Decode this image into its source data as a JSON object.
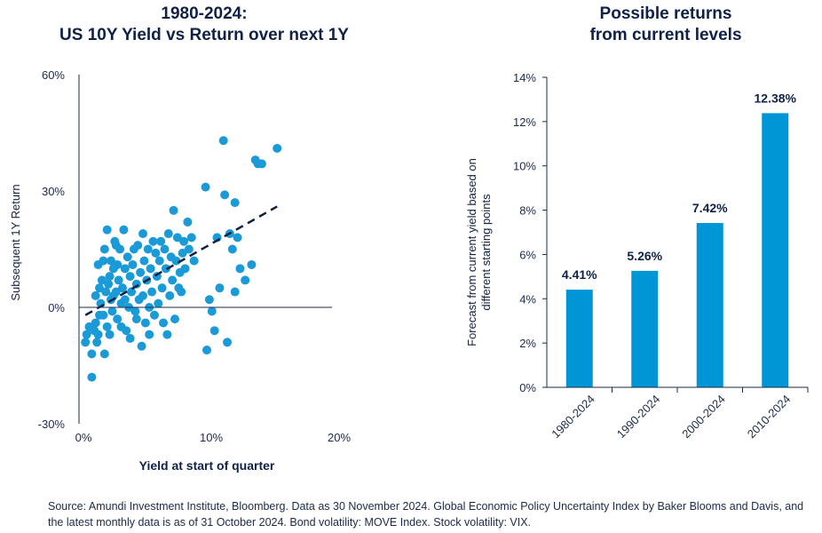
{
  "chart_data": [
    {
      "type": "scatter",
      "title_line1": "1980-2024:",
      "title_line2": "US 10Y Yield vs Return over next 1Y",
      "xlabel": "Yield at start of quarter",
      "ylabel": "Subsequent 1Y Return",
      "xlim": [
        0,
        20
      ],
      "ylim": [
        -30,
        60
      ],
      "xticks": [
        "0%",
        "10%",
        "20%"
      ],
      "yticks": [
        "-30%",
        "0%",
        "30%",
        "60%"
      ],
      "trendline": {
        "style": "dashed",
        "points": [
          [
            0.5,
            -2
          ],
          [
            15.5,
            26
          ]
        ]
      },
      "points": [
        [
          0.5,
          -9
        ],
        [
          0.6,
          -7
        ],
        [
          0.8,
          -5
        ],
        [
          1.0,
          -18
        ],
        [
          1.0,
          -12
        ],
        [
          1.2,
          -6
        ],
        [
          1.3,
          -4
        ],
        [
          1.4,
          -9
        ],
        [
          1.5,
          -7
        ],
        [
          1.6,
          -2
        ],
        [
          1.3,
          3
        ],
        [
          1.5,
          11
        ],
        [
          1.6,
          5
        ],
        [
          1.7,
          1
        ],
        [
          1.8,
          7
        ],
        [
          1.9,
          12
        ],
        [
          1.9,
          -2
        ],
        [
          2.0,
          -12
        ],
        [
          2.0,
          15
        ],
        [
          2.1,
          4
        ],
        [
          2.2,
          20
        ],
        [
          2.2,
          -5
        ],
        [
          2.3,
          6
        ],
        [
          2.4,
          8
        ],
        [
          2.4,
          -7
        ],
        [
          2.5,
          2
        ],
        [
          2.5,
          12
        ],
        [
          2.6,
          -1
        ],
        [
          2.7,
          3
        ],
        [
          2.7,
          10
        ],
        [
          2.8,
          17
        ],
        [
          2.9,
          16
        ],
        [
          2.9,
          4
        ],
        [
          3.0,
          -3
        ],
        [
          3.0,
          11
        ],
        [
          3.1,
          7
        ],
        [
          3.2,
          15
        ],
        [
          3.3,
          1
        ],
        [
          3.3,
          -5
        ],
        [
          3.4,
          5
        ],
        [
          3.5,
          20
        ],
        [
          3.6,
          10
        ],
        [
          3.6,
          2
        ],
        [
          3.7,
          -6
        ],
        [
          3.8,
          13
        ],
        [
          3.9,
          0
        ],
        [
          4.0,
          -8
        ],
        [
          4.0,
          8
        ],
        [
          4.1,
          4
        ],
        [
          4.2,
          11
        ],
        [
          4.3,
          15
        ],
        [
          4.4,
          -1
        ],
        [
          4.5,
          6
        ],
        [
          4.5,
          -3
        ],
        [
          4.6,
          16
        ],
        [
          4.7,
          2
        ],
        [
          4.8,
          9
        ],
        [
          4.9,
          -10
        ],
        [
          5.0,
          19
        ],
        [
          5.0,
          3
        ],
        [
          5.1,
          12
        ],
        [
          5.2,
          -4
        ],
        [
          5.3,
          7
        ],
        [
          5.4,
          15
        ],
        [
          5.5,
          0
        ],
        [
          5.5,
          -7
        ],
        [
          5.6,
          10
        ],
        [
          5.7,
          4
        ],
        [
          5.8,
          17
        ],
        [
          5.9,
          -2
        ],
        [
          6.0,
          14
        ],
        [
          6.1,
          8
        ],
        [
          6.2,
          1
        ],
        [
          6.3,
          12
        ],
        [
          6.4,
          17
        ],
        [
          6.5,
          5
        ],
        [
          6.6,
          -4
        ],
        [
          6.7,
          15
        ],
        [
          6.8,
          10
        ],
        [
          6.9,
          -7
        ],
        [
          7.0,
          19
        ],
        [
          7.1,
          3
        ],
        [
          7.2,
          13
        ],
        [
          7.3,
          7
        ],
        [
          7.4,
          25
        ],
        [
          7.5,
          -3
        ],
        [
          7.6,
          12
        ],
        [
          7.7,
          18
        ],
        [
          7.8,
          5
        ],
        [
          7.9,
          9
        ],
        [
          8.0,
          4
        ],
        [
          8.1,
          14
        ],
        [
          8.2,
          17
        ],
        [
          8.3,
          10
        ],
        [
          8.5,
          22
        ],
        [
          8.6,
          15
        ],
        [
          8.8,
          18
        ],
        [
          9.0,
          12
        ],
        [
          9.9,
          31
        ],
        [
          10.0,
          -11
        ],
        [
          10.2,
          2
        ],
        [
          10.4,
          -1
        ],
        [
          10.6,
          -6
        ],
        [
          10.8,
          18
        ],
        [
          11.0,
          5
        ],
        [
          11.3,
          43
        ],
        [
          11.4,
          29
        ],
        [
          11.6,
          -9
        ],
        [
          11.8,
          19
        ],
        [
          12.0,
          15
        ],
        [
          12.2,
          27
        ],
        [
          12.2,
          4
        ],
        [
          12.4,
          18
        ],
        [
          12.6,
          10
        ],
        [
          13.0,
          7
        ],
        [
          13.5,
          11
        ],
        [
          13.8,
          38
        ],
        [
          14.0,
          37
        ],
        [
          14.3,
          37
        ],
        [
          15.5,
          41
        ]
      ]
    },
    {
      "type": "bar",
      "title_line1": "Possible returns",
      "title_line2": "from current levels",
      "ylabel_line1": "Forecast from current yield based on",
      "ylabel_line2": "different starting points",
      "categories": [
        "1980-2024",
        "1990-2024",
        "2000-2024",
        "2010-2024"
      ],
      "values": [
        4.41,
        5.26,
        7.42,
        12.38
      ],
      "value_labels": [
        "4.41%",
        "5.26%",
        "7.42%",
        "12.38%"
      ],
      "ylim": [
        0,
        14
      ],
      "yticks": [
        "0%",
        "2%",
        "4%",
        "6%",
        "8%",
        "10%",
        "12%",
        "14%"
      ],
      "bar_color": "#0096d6"
    }
  ],
  "colors": {
    "point": "#1a9ad6",
    "bar": "#0096d6",
    "axis": "#1b2a4a",
    "trend": "#0f2147"
  },
  "source_text": "Source: Amundi Investment Institute, Bloomberg. Data as 30 November 2024. Global Economic Policy Uncertainty Index by Baker Blooms and Davis, and the latest monthly data is as of 31 October 2024. Bond volatility: MOVE Index. Stock volatility: VIX."
}
